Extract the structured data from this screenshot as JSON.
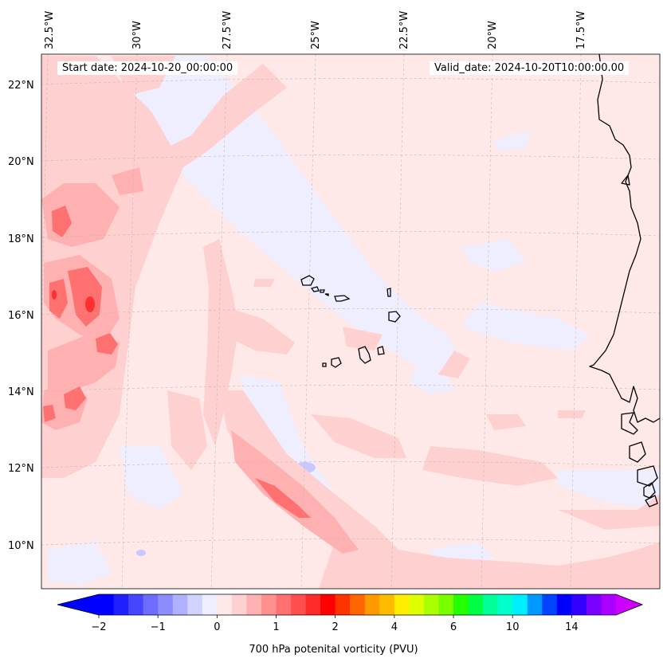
{
  "header": {
    "start_label": "Start date: 2024-10-20_00:00:00",
    "valid_label": "Valid_date: 2024-10-20T10:00:00.00"
  },
  "axes": {
    "lon_labels": [
      "32.5°W",
      "30°W",
      "27.5°W",
      "25°W",
      "22.5°W",
      "20°W",
      "17.5°W"
    ],
    "lat_labels": [
      "22°N",
      "20°N",
      "18°N",
      "16°N",
      "14°N",
      "12°N",
      "10°N"
    ]
  },
  "colorbar": {
    "title": "700 hPa potenital vorticity (PVU)",
    "tick_labels": [
      "−2",
      "−1",
      "0",
      "1",
      "2",
      "4",
      "6",
      "10",
      "14"
    ],
    "tick_values": [
      -2,
      -1,
      0,
      1,
      2,
      4,
      6,
      10,
      14
    ],
    "colors": [
      "#0000ff",
      "#2020ff",
      "#4646ff",
      "#6c6cff",
      "#8c8cff",
      "#b0b0ff",
      "#d2d2ff",
      "#eeeeff",
      "#ffe8e8",
      "#ffd0d0",
      "#ffb0b0",
      "#ff9090",
      "#ff7070",
      "#ff4e4e",
      "#ff2a2a",
      "#ff0000",
      "#ff3300",
      "#ff6600",
      "#ff9900",
      "#ffbb00",
      "#ffee00",
      "#ddff00",
      "#aaff00",
      "#77ff00",
      "#22ff00",
      "#00ff44",
      "#00ff99",
      "#00ffcc",
      "#00eeff",
      "#0099ff",
      "#0044ff",
      "#0000ff",
      "#3300ff",
      "#7700ff",
      "#aa00ff"
    ],
    "extend_min_color": "#0000ff",
    "extend_max_color": "#cc00ff"
  },
  "map": {
    "background_color": "#ffe8e8",
    "negative_color": "#eeeeff",
    "light_positive_color": "#ffd0d0",
    "mid_positive_color": "#ffb0b0",
    "strong_positive_color": "#ff7070",
    "max_positive_color": "#ff3030",
    "coastline_color": "#000000",
    "gridline_color": "#bbbbbb"
  }
}
